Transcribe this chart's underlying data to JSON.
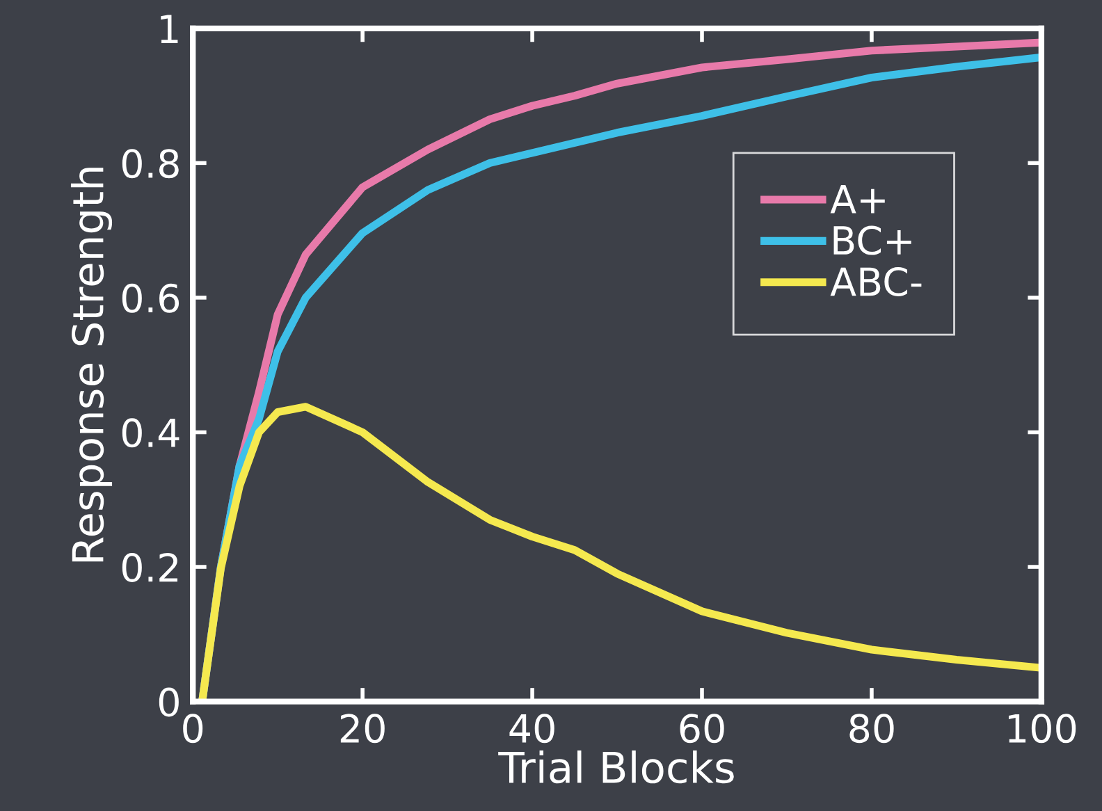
{
  "chart_data": {
    "type": "line",
    "xlabel": "Trial Blocks",
    "ylabel": "Response Strength",
    "xlim": [
      0,
      100
    ],
    "ylim": [
      0,
      1
    ],
    "xticks": [
      0,
      20,
      40,
      60,
      80,
      100
    ],
    "yticks": [
      0,
      0.2,
      0.4,
      0.6,
      0.8,
      1
    ],
    "grid": false,
    "legend": "right",
    "line_style": "solid",
    "marker": "none",
    "x": [
      1.1,
      3.3,
      5.5,
      7.8,
      10,
      13.3,
      20,
      27.7,
      35,
      40,
      45,
      50,
      60,
      70,
      80,
      90,
      100
    ],
    "series": [
      {
        "name": "A+",
        "color": "#e87aaa",
        "values": [
          0,
          0.2,
          0.35,
          0.46,
          0.575,
          0.664,
          0.764,
          0.82,
          0.865,
          0.885,
          0.9,
          0.918,
          0.942,
          0.954,
          0.967,
          0.973,
          0.979
        ]
      },
      {
        "name": "BC+",
        "color": "#3ec0e8",
        "values": [
          0,
          0.2,
          0.35,
          0.42,
          0.52,
          0.6,
          0.696,
          0.76,
          0.8,
          0.815,
          0.83,
          0.845,
          0.87,
          0.899,
          0.927,
          0.943,
          0.957
        ]
      },
      {
        "name": "ABC-",
        "color": "#f5e94f",
        "values": [
          0,
          0.198,
          0.32,
          0.4,
          0.43,
          0.438,
          0.4,
          0.326,
          0.27,
          0.245,
          0.225,
          0.19,
          0.134,
          0.102,
          0.077,
          0.062,
          0.05
        ]
      }
    ]
  }
}
